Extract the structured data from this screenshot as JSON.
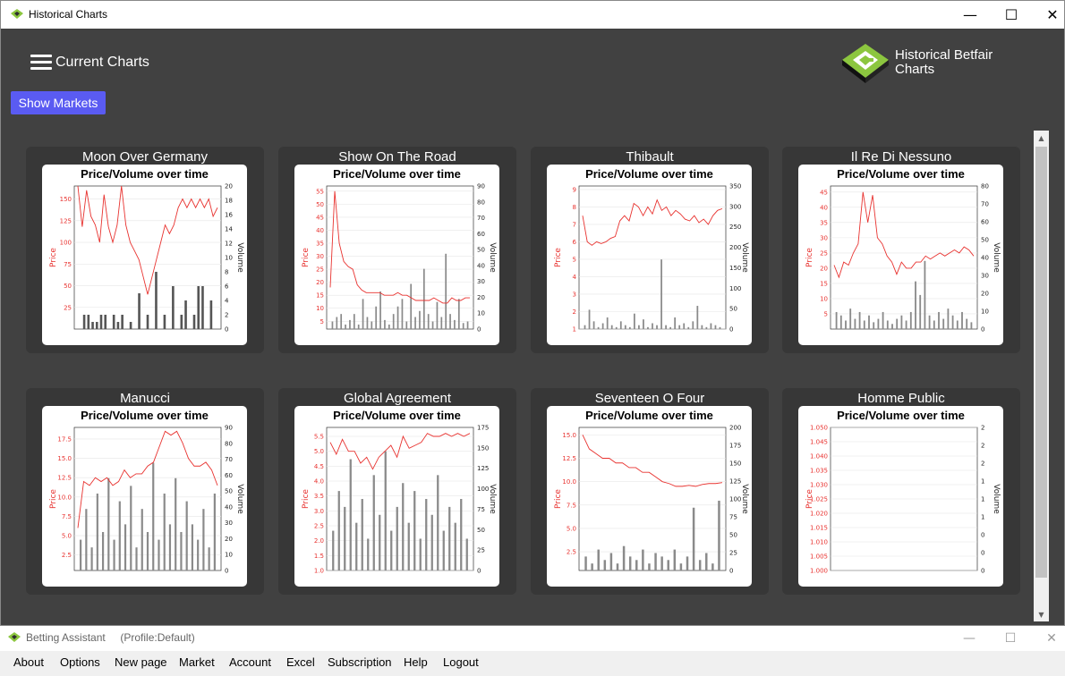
{
  "window": {
    "title": "Historical Charts",
    "min": "—",
    "max": "☐",
    "close": "✕"
  },
  "header": {
    "current_label": "Current Charts",
    "brand_line1": "Historical Betfair",
    "brand_line2": "Charts"
  },
  "show_markets_label": "Show Markets",
  "colors": {
    "price": "#e8322f",
    "volume": "#555555",
    "button": "#5a5bf2",
    "logo": "#8cc63f"
  },
  "chart_data": [
    {
      "type": "line",
      "name": "Moon Over Germany",
      "title": "Price/Volume over time",
      "ylabel": "Price",
      "y2label": "Volume",
      "price_ticks": [
        "25",
        "50",
        "75",
        "100",
        "125",
        "150"
      ],
      "price_range": [
        0,
        165
      ],
      "volume_ticks": [
        "0",
        "2",
        "4",
        "6",
        "8",
        "10",
        "12",
        "14",
        "16",
        "18",
        "20"
      ],
      "volume_range": [
        0,
        20
      ],
      "price": [
        165,
        118,
        160,
        130,
        120,
        100,
        155,
        118,
        100,
        120,
        165,
        120,
        100,
        90,
        80,
        60,
        40,
        60,
        80,
        100,
        120,
        110,
        120,
        140,
        150,
        140,
        150,
        140,
        150,
        140,
        150,
        130,
        140
      ],
      "volume": [
        0,
        2,
        2,
        1,
        1,
        2,
        2,
        0,
        2,
        1,
        2,
        0,
        1,
        0,
        5,
        0,
        2,
        0,
        8,
        0,
        2,
        0,
        6,
        0,
        2,
        4,
        0,
        2,
        6,
        6,
        0,
        4,
        0
      ]
    },
    {
      "type": "line",
      "name": "Show On The Road",
      "title": "Price/Volume over time",
      "ylabel": "Price",
      "y2label": "Volume",
      "price_ticks": [
        "5",
        "10",
        "15",
        "20",
        "25",
        "30",
        "35",
        "40",
        "45",
        "50",
        "55"
      ],
      "price_range": [
        2,
        57
      ],
      "volume_ticks": [
        "0",
        "10",
        "20",
        "30",
        "40",
        "50",
        "60",
        "70",
        "80",
        "90"
      ],
      "volume_range": [
        0,
        95
      ],
      "price": [
        18,
        55,
        35,
        28,
        26,
        25,
        19,
        17,
        16,
        16,
        16,
        16,
        15,
        15,
        15,
        16,
        15,
        15,
        14,
        13,
        13,
        13,
        13,
        14,
        13,
        12,
        12,
        14,
        13,
        13,
        14,
        14
      ],
      "volume": [
        5,
        8,
        10,
        3,
        6,
        10,
        3,
        20,
        8,
        5,
        15,
        25,
        6,
        3,
        10,
        15,
        20,
        5,
        30,
        8,
        12,
        40,
        10,
        5,
        18,
        8,
        50,
        10,
        6,
        20,
        4,
        5
      ]
    },
    {
      "type": "line",
      "name": "Thibault",
      "title": "Price/Volume over time",
      "ylabel": "Price",
      "y2label": "Volume",
      "price_ticks": [
        "1",
        "2",
        "3",
        "4",
        "5",
        "6",
        "7",
        "8",
        "9"
      ],
      "price_range": [
        1,
        9.2
      ],
      "volume_ticks": [
        "0",
        "50",
        "100",
        "150",
        "200",
        "250",
        "300",
        "350"
      ],
      "volume_range": [
        0,
        370
      ],
      "price": [
        7.5,
        6,
        5.8,
        6,
        5.9,
        6,
        6.2,
        6.3,
        7.2,
        7.5,
        7.2,
        8.2,
        8,
        7.5,
        8,
        7.6,
        8.4,
        7.8,
        8,
        7.5,
        7.8,
        7.6,
        7.3,
        7.2,
        7.5,
        7.1,
        7.3,
        7,
        7.5,
        7.8,
        7.9
      ],
      "volume": [
        10,
        50,
        20,
        5,
        15,
        30,
        10,
        5,
        20,
        10,
        5,
        40,
        10,
        25,
        5,
        15,
        10,
        180,
        10,
        5,
        30,
        10,
        15,
        5,
        20,
        60,
        10,
        5,
        15,
        10,
        5
      ]
    },
    {
      "type": "line",
      "name": "Il Re Di Nessuno",
      "title": "Price/Volume over time",
      "ylabel": "Price",
      "y2label": "Volume",
      "price_ticks": [
        "5",
        "10",
        "15",
        "20",
        "25",
        "30",
        "35",
        "40",
        "45"
      ],
      "price_range": [
        0,
        47
      ],
      "volume_ticks": [
        "0",
        "10",
        "20",
        "30",
        "40",
        "50",
        "60",
        "70",
        "80"
      ],
      "volume_range": [
        0,
        84
      ],
      "price": [
        21,
        17,
        22,
        21,
        25,
        28,
        45,
        35,
        44,
        30,
        28,
        24,
        22,
        18,
        22,
        20,
        20,
        22,
        22,
        24,
        23,
        24,
        25,
        24,
        25,
        26,
        25,
        27,
        26,
        24
      ],
      "volume": [
        10,
        8,
        5,
        12,
        6,
        10,
        5,
        8,
        4,
        6,
        10,
        5,
        3,
        6,
        8,
        5,
        10,
        28,
        20,
        40,
        8,
        5,
        10,
        6,
        12,
        8,
        5,
        10,
        6,
        4
      ]
    },
    {
      "type": "line",
      "name": "Manucci",
      "title": "Price/Volume over time",
      "ylabel": "Price",
      "y2label": "Volume",
      "price_ticks": [
        "2.5",
        "5.0",
        "7.5",
        "10.0",
        "12.5",
        "15.0",
        "17.5"
      ],
      "price_range": [
        0.5,
        19
      ],
      "volume_ticks": [
        "0",
        "10",
        "20",
        "30",
        "40",
        "50",
        "60",
        "70",
        "80",
        "90"
      ],
      "volume_range": [
        0,
        93
      ],
      "price": [
        6,
        12,
        11.5,
        12.5,
        12,
        12.5,
        11.5,
        12,
        13.5,
        12.5,
        13,
        13,
        14,
        14.5,
        16.5,
        18.5,
        18,
        18.5,
        17,
        15,
        14,
        14,
        14.5,
        13.5,
        11.5
      ],
      "volume": [
        20,
        40,
        15,
        50,
        25,
        60,
        20,
        45,
        30,
        55,
        15,
        40,
        25,
        70,
        20,
        50,
        30,
        60,
        25,
        45,
        30,
        20,
        40,
        15,
        50
      ]
    },
    {
      "type": "line",
      "name": "Global Agreement",
      "title": "Price/Volume over time",
      "ylabel": "Price",
      "y2label": "Volume",
      "price_ticks": [
        "1.0",
        "1.5",
        "2.0",
        "2.5",
        "3.0",
        "3.5",
        "4.0",
        "4.5",
        "5.0",
        "5.5"
      ],
      "price_range": [
        1,
        5.8
      ],
      "volume_ticks": [
        "0",
        "25",
        "50",
        "75",
        "100",
        "125",
        "150",
        "175"
      ],
      "volume_range": [
        0,
        180
      ],
      "price": [
        5.3,
        4.9,
        5.4,
        5,
        5,
        4.6,
        4.8,
        4.4,
        4.8,
        5,
        5.2,
        4.8,
        5.5,
        5.1,
        5.2,
        5.3,
        5.6,
        5.5,
        5.5,
        5.6,
        5.5,
        5.6,
        5.5,
        5.6
      ],
      "volume": [
        50,
        100,
        80,
        140,
        60,
        90,
        40,
        120,
        70,
        150,
        50,
        80,
        110,
        60,
        100,
        40,
        90,
        70,
        120,
        50,
        80,
        60,
        90,
        40
      ]
    },
    {
      "type": "line",
      "name": "Seventeen O Four",
      "title": "Price/Volume over time",
      "ylabel": "Price",
      "y2label": "Volume",
      "price_ticks": [
        "2.5",
        "5.0",
        "7.5",
        "10.0",
        "12.5",
        "15.0"
      ],
      "price_range": [
        0.5,
        15.8
      ],
      "volume_ticks": [
        "0",
        "25",
        "50",
        "75",
        "100",
        "125",
        "150",
        "175",
        "200"
      ],
      "volume_range": [
        0,
        205
      ],
      "price": [
        15,
        13.5,
        13,
        12.5,
        12.5,
        12,
        12,
        11.5,
        11.5,
        11,
        11,
        10.5,
        10,
        9.8,
        9.5,
        9.5,
        9.6,
        9.5,
        9.7,
        9.8,
        9.8,
        9.9
      ],
      "volume": [
        20,
        10,
        30,
        15,
        25,
        10,
        35,
        20,
        15,
        30,
        10,
        25,
        20,
        15,
        30,
        10,
        20,
        90,
        15,
        25,
        10,
        100
      ]
    },
    {
      "type": "line",
      "name": "Homme Public",
      "title": "Price/Volume over time",
      "ylabel": "Price",
      "y2label": "Volume",
      "price_ticks": [
        "1.000",
        "1.005",
        "1.010",
        "1.015",
        "1.020",
        "1.025",
        "1.030",
        "1.035",
        "1.040",
        "1.045",
        "1.050"
      ],
      "price_range": [
        1.0,
        1.05
      ],
      "volume_ticks": [
        "0",
        "0",
        "0",
        "1",
        "1",
        "1",
        "2",
        "2",
        "2"
      ],
      "volume_range": [
        0,
        2
      ],
      "price": [],
      "volume": []
    }
  ],
  "taskbar": {
    "title": "Betting Assistant",
    "profile": "(Profile:Default)",
    "min": "—",
    "max": "☐",
    "close": "✕"
  },
  "menu": [
    "About",
    "Options",
    "New page",
    "Market",
    "Account",
    "Excel",
    "Subscription",
    "Help",
    "Logout"
  ]
}
